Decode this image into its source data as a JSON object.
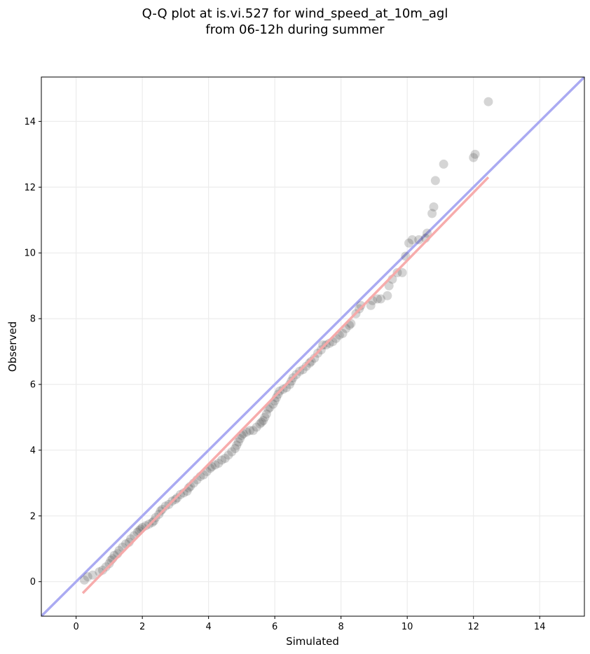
{
  "title": "Q-Q plot at is.vi.527 for wind_speed_at_10m_agl",
  "subtitle": "from 06-12h during summer",
  "chart_data": {
    "type": "scatter",
    "title": "Q-Q plot at is.vi.527 for wind_speed_at_10m_agl",
    "subtitle": "from 06-12h during summer",
    "xlabel": "Simulated",
    "ylabel": "Observed",
    "xlim": [
      -1.05,
      15.35
    ],
    "ylim": [
      -1.05,
      15.35
    ],
    "xticks": [
      0,
      2,
      4,
      6,
      8,
      10,
      12,
      14
    ],
    "yticks": [
      0,
      2,
      4,
      6,
      8,
      10,
      12,
      14
    ],
    "grid": true,
    "point_color": "#404040",
    "reference_line": {
      "color": "#aaaaf2",
      "x": [
        -1.05,
        15.35
      ],
      "y": [
        -1.05,
        15.35
      ]
    },
    "fit_line": {
      "color": "#f7a8a8",
      "x": [
        0.2,
        12.45
      ],
      "y": [
        -0.35,
        12.3
      ]
    },
    "points": [
      [
        0.25,
        0.05
      ],
      [
        0.35,
        0.15
      ],
      [
        0.5,
        0.2
      ],
      [
        0.7,
        0.3
      ],
      [
        0.8,
        0.35
      ],
      [
        0.9,
        0.45
      ],
      [
        1.0,
        0.55
      ],
      [
        1.05,
        0.65
      ],
      [
        1.1,
        0.7
      ],
      [
        1.15,
        0.8
      ],
      [
        1.25,
        0.85
      ],
      [
        1.3,
        0.95
      ],
      [
        1.4,
        1.05
      ],
      [
        1.5,
        1.15
      ],
      [
        1.6,
        1.2
      ],
      [
        1.65,
        1.3
      ],
      [
        1.75,
        1.4
      ],
      [
        1.85,
        1.5
      ],
      [
        1.9,
        1.55
      ],
      [
        1.95,
        1.6
      ],
      [
        2.0,
        1.65
      ],
      [
        2.1,
        1.7
      ],
      [
        2.2,
        1.75
      ],
      [
        2.3,
        1.8
      ],
      [
        2.35,
        1.85
      ],
      [
        2.4,
        1.95
      ],
      [
        2.5,
        2.05
      ],
      [
        2.55,
        2.15
      ],
      [
        2.6,
        2.2
      ],
      [
        2.7,
        2.3
      ],
      [
        2.8,
        2.35
      ],
      [
        2.9,
        2.45
      ],
      [
        3.0,
        2.5
      ],
      [
        3.05,
        2.55
      ],
      [
        3.15,
        2.65
      ],
      [
        3.25,
        2.7
      ],
      [
        3.35,
        2.75
      ],
      [
        3.4,
        2.85
      ],
      [
        3.45,
        2.9
      ],
      [
        3.55,
        3.0
      ],
      [
        3.65,
        3.1
      ],
      [
        3.75,
        3.2
      ],
      [
        3.85,
        3.25
      ],
      [
        3.95,
        3.35
      ],
      [
        4.05,
        3.45
      ],
      [
        4.1,
        3.5
      ],
      [
        4.2,
        3.55
      ],
      [
        4.3,
        3.6
      ],
      [
        4.4,
        3.7
      ],
      [
        4.5,
        3.75
      ],
      [
        4.6,
        3.85
      ],
      [
        4.7,
        3.95
      ],
      [
        4.8,
        4.05
      ],
      [
        4.85,
        4.15
      ],
      [
        4.9,
        4.25
      ],
      [
        4.95,
        4.35
      ],
      [
        5.0,
        4.45
      ],
      [
        5.05,
        4.5
      ],
      [
        5.15,
        4.55
      ],
      [
        5.25,
        4.6
      ],
      [
        5.35,
        4.6
      ],
      [
        5.45,
        4.7
      ],
      [
        5.55,
        4.8
      ],
      [
        5.6,
        4.85
      ],
      [
        5.65,
        4.9
      ],
      [
        5.7,
        5.0
      ],
      [
        5.75,
        5.1
      ],
      [
        5.8,
        5.25
      ],
      [
        5.85,
        5.3
      ],
      [
        5.95,
        5.4
      ],
      [
        6.0,
        5.5
      ],
      [
        6.05,
        5.6
      ],
      [
        6.1,
        5.7
      ],
      [
        6.15,
        5.8
      ],
      [
        6.25,
        5.85
      ],
      [
        6.35,
        5.9
      ],
      [
        6.45,
        6.0
      ],
      [
        6.5,
        6.1
      ],
      [
        6.55,
        6.2
      ],
      [
        6.65,
        6.3
      ],
      [
        6.75,
        6.4
      ],
      [
        6.85,
        6.45
      ],
      [
        6.95,
        6.55
      ],
      [
        7.05,
        6.65
      ],
      [
        7.1,
        6.7
      ],
      [
        7.2,
        6.8
      ],
      [
        7.3,
        6.95
      ],
      [
        7.4,
        7.05
      ],
      [
        7.45,
        7.2
      ],
      [
        7.55,
        7.2
      ],
      [
        7.65,
        7.25
      ],
      [
        7.75,
        7.3
      ],
      [
        7.85,
        7.4
      ],
      [
        7.95,
        7.5
      ],
      [
        8.05,
        7.55
      ],
      [
        8.15,
        7.7
      ],
      [
        8.25,
        7.8
      ],
      [
        8.3,
        7.85
      ],
      [
        8.45,
        8.15
      ],
      [
        8.55,
        8.3
      ],
      [
        8.6,
        8.4
      ],
      [
        8.9,
        8.4
      ],
      [
        8.95,
        8.55
      ],
      [
        9.1,
        8.6
      ],
      [
        9.2,
        8.6
      ],
      [
        9.4,
        8.7
      ],
      [
        9.45,
        9.0
      ],
      [
        9.55,
        9.2
      ],
      [
        9.7,
        9.4
      ],
      [
        9.85,
        9.4
      ],
      [
        9.95,
        9.9
      ],
      [
        10.05,
        10.3
      ],
      [
        10.15,
        10.4
      ],
      [
        10.35,
        10.4
      ],
      [
        10.55,
        10.45
      ],
      [
        10.6,
        10.6
      ],
      [
        10.75,
        11.2
      ],
      [
        10.8,
        11.4
      ],
      [
        10.85,
        12.2
      ],
      [
        11.1,
        12.7
      ],
      [
        12.0,
        12.9
      ],
      [
        12.05,
        13.0
      ],
      [
        12.45,
        14.6
      ]
    ]
  }
}
